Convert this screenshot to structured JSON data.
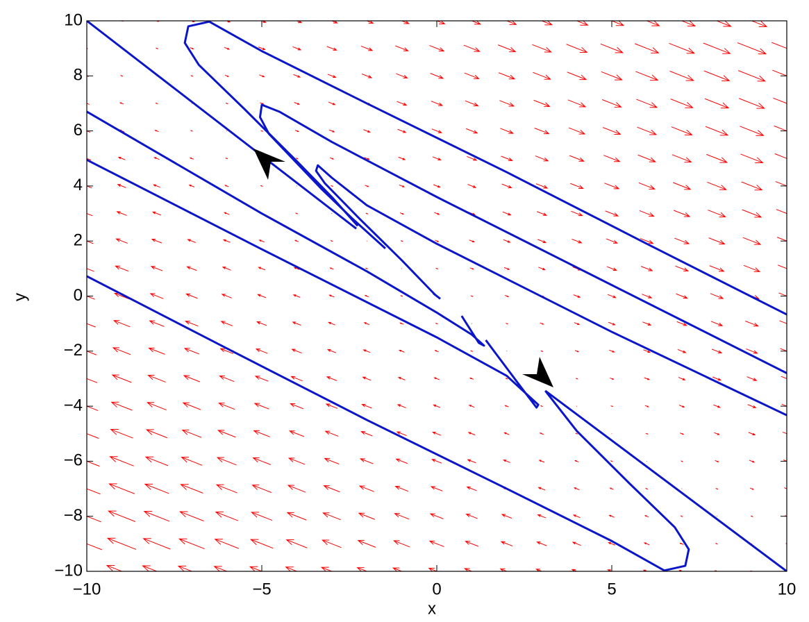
{
  "chart_data": {
    "type": "quiver",
    "xlabel": "x",
    "ylabel": "y",
    "xlim": [
      -10,
      10
    ],
    "ylim": [
      -10,
      10
    ],
    "xticks": [
      {
        "value": -10,
        "label": "−10"
      },
      {
        "value": -5,
        "label": "−5"
      },
      0,
      5,
      10
    ],
    "yticks": [
      {
        "value": -10,
        "label": "−10"
      },
      {
        "value": -8,
        "label": "−8"
      },
      {
        "value": -6,
        "label": "−6"
      },
      {
        "value": -4,
        "label": "−4"
      },
      {
        "value": -2,
        "label": "−2"
      },
      0,
      2,
      4,
      6,
      8,
      10
    ],
    "quiver": {
      "color": "#ff0000",
      "x": [
        -10,
        -9,
        -8,
        -7,
        -6,
        -5,
        -4,
        -3,
        -2,
        -1,
        0,
        1,
        2,
        3,
        4,
        5,
        6,
        7,
        8,
        9,
        10
      ],
      "y": [
        -10,
        -9,
        -8,
        -7,
        -6,
        -5,
        -4,
        -3,
        -2,
        -1,
        0,
        1,
        2,
        3,
        4,
        5,
        6,
        7,
        8,
        9,
        10
      ],
      "u": [
        [
          -20,
          -19,
          -18,
          -17,
          -16,
          -15,
          -14,
          -13,
          -12,
          -11,
          -10,
          -9,
          -8,
          -7,
          -6,
          -5,
          -4,
          -3,
          -2,
          -1,
          0
        ],
        [
          -19,
          -18,
          -17,
          -16,
          -15,
          -14,
          -13,
          -12,
          -11,
          -10,
          -9,
          -8,
          -7,
          -6,
          -5,
          -4,
          -3,
          -2,
          -1,
          0,
          1
        ],
        [
          -18,
          -17,
          -16,
          -15,
          -14,
          -13,
          -12,
          -11,
          -10,
          -9,
          -8,
          -7,
          -6,
          -5,
          -4,
          -3,
          -2,
          -1,
          0,
          1,
          2
        ],
        [
          -17,
          -16,
          -15,
          -14,
          -13,
          -12,
          -11,
          -10,
          -9,
          -8,
          -7,
          -6,
          -5,
          -4,
          -3,
          -2,
          -1,
          0,
          1,
          2,
          3
        ],
        [
          -16,
          -15,
          -14,
          -13,
          -12,
          -11,
          -10,
          -9,
          -8,
          -7,
          -6,
          -5,
          -4,
          -3,
          -2,
          -1,
          0,
          1,
          2,
          3,
          4
        ],
        [
          -15,
          -14,
          -13,
          -12,
          -11,
          -10,
          -9,
          -8,
          -7,
          -6,
          -5,
          -4,
          -3,
          -2,
          -1,
          0,
          1,
          2,
          3,
          4,
          5
        ],
        [
          -14,
          -13,
          -12,
          -11,
          -10,
          -9,
          -8,
          -7,
          -6,
          -5,
          -4,
          -3,
          -2,
          -1,
          0,
          1,
          2,
          3,
          4,
          5,
          6
        ],
        [
          -13,
          -12,
          -11,
          -10,
          -9,
          -8,
          -7,
          -6,
          -5,
          -4,
          -3,
          -2,
          -1,
          0,
          1,
          2,
          3,
          4,
          5,
          6,
          7
        ],
        [
          -12,
          -11,
          -10,
          -9,
          -8,
          -7,
          -6,
          -5,
          -4,
          -3,
          -2,
          -1,
          0,
          1,
          2,
          3,
          4,
          5,
          6,
          7,
          8
        ],
        [
          -11,
          -10,
          -9,
          -8,
          -7,
          -6,
          -5,
          -4,
          -3,
          -2,
          -1,
          0,
          1,
          2,
          3,
          4,
          5,
          6,
          7,
          8,
          9
        ],
        [
          -10,
          -9,
          -8,
          -7,
          -6,
          -5,
          -4,
          -3,
          -2,
          -1,
          0,
          1,
          2,
          3,
          4,
          5,
          6,
          7,
          8,
          9,
          10
        ],
        [
          -9,
          -8,
          -7,
          -6,
          -5,
          -4,
          -3,
          -2,
          -1,
          0,
          1,
          2,
          3,
          4,
          5,
          6,
          7,
          8,
          9,
          10,
          11
        ],
        [
          -8,
          -7,
          -6,
          -5,
          -4,
          -3,
          -2,
          -1,
          0,
          1,
          2,
          3,
          4,
          5,
          6,
          7,
          8,
          9,
          10,
          11,
          12
        ],
        [
          -7,
          -6,
          -5,
          -4,
          -3,
          -2,
          -1,
          0,
          1,
          2,
          3,
          4,
          5,
          6,
          7,
          8,
          9,
          10,
          11,
          12,
          13
        ],
        [
          -6,
          -5,
          -4,
          -3,
          -2,
          -1,
          0,
          1,
          2,
          3,
          4,
          5,
          6,
          7,
          8,
          9,
          10,
          11,
          12,
          13,
          14
        ],
        [
          -5,
          -4,
          -3,
          -2,
          -1,
          0,
          1,
          2,
          3,
          4,
          5,
          6,
          7,
          8,
          9,
          10,
          11,
          12,
          13,
          14,
          15
        ],
        [
          -4,
          -3,
          -2,
          -1,
          0,
          1,
          2,
          3,
          4,
          5,
          6,
          7,
          8,
          9,
          10,
          11,
          12,
          13,
          14,
          15,
          16
        ],
        [
          -3,
          -2,
          -1,
          0,
          1,
          2,
          3,
          4,
          5,
          6,
          7,
          8,
          9,
          10,
          11,
          12,
          13,
          14,
          15,
          16,
          17
        ],
        [
          -2,
          -1,
          0,
          1,
          2,
          3,
          4,
          5,
          6,
          7,
          8,
          9,
          10,
          11,
          12,
          13,
          14,
          15,
          16,
          17,
          18
        ],
        [
          -1,
          0,
          1,
          2,
          3,
          4,
          5,
          6,
          7,
          8,
          9,
          10,
          11,
          12,
          13,
          14,
          15,
          16,
          17,
          18,
          19
        ],
        [
          0,
          1,
          2,
          3,
          4,
          5,
          6,
          7,
          8,
          9,
          10,
          11,
          12,
          13,
          14,
          15,
          16,
          17,
          18,
          19,
          20
        ]
      ],
      "v": [
        [
          10,
          9.5,
          9,
          8.5,
          8,
          7.5,
          7,
          6.5,
          6,
          5.5,
          5,
          4.5,
          4,
          3.5,
          3,
          2.5,
          2,
          1.5,
          1,
          0.5,
          0
        ],
        [
          9.5,
          9,
          8.5,
          8,
          7.5,
          7,
          6.5,
          6,
          5.5,
          5,
          4.5,
          4,
          3.5,
          3,
          2.5,
          2,
          1.5,
          1,
          0.5,
          0,
          -0.5
        ],
        [
          9,
          8.5,
          8,
          7.5,
          7,
          6.5,
          6,
          5.5,
          5,
          4.5,
          4,
          3.5,
          3,
          2.5,
          2,
          1.5,
          1,
          0.5,
          0,
          -0.5,
          -1
        ],
        [
          8.5,
          8,
          7.5,
          7,
          6.5,
          6,
          5.5,
          5,
          4.5,
          4,
          3.5,
          3,
          2.5,
          2,
          1.5,
          1,
          0.5,
          0,
          -0.5,
          -1,
          -1.5
        ],
        [
          8,
          7.5,
          7,
          6.5,
          6,
          5.5,
          5,
          4.5,
          4,
          3.5,
          3,
          2.5,
          2,
          1.5,
          1,
          0.5,
          0,
          -0.5,
          -1,
          -1.5,
          -2
        ],
        [
          7.5,
          7,
          6.5,
          6,
          5.5,
          5,
          4.5,
          4,
          3.5,
          3,
          2.5,
          2,
          1.5,
          1,
          0.5,
          0,
          -0.5,
          -1,
          -1.5,
          -2,
          -2.5
        ],
        [
          7,
          6.5,
          6,
          5.5,
          5,
          4.5,
          4,
          3.5,
          3,
          2.5,
          2,
          1.5,
          1,
          0.5,
          0,
          -0.5,
          -1,
          -1.5,
          -2,
          -2.5,
          -3
        ],
        [
          6.5,
          6,
          5.5,
          5,
          4.5,
          4,
          3.5,
          3,
          2.5,
          2,
          1.5,
          1,
          0.5,
          0,
          -0.5,
          -1,
          -1.5,
          -2,
          -2.5,
          -3,
          -3.5
        ],
        [
          6,
          5.5,
          5,
          4.5,
          4,
          3.5,
          3,
          2.5,
          2,
          1.5,
          1,
          0.5,
          0,
          -0.5,
          -1,
          -1.5,
          -2,
          -2.5,
          -3,
          -3.5,
          -4
        ],
        [
          5.5,
          5,
          4.5,
          4,
          3.5,
          3,
          2.5,
          2,
          1.5,
          1,
          0.5,
          0,
          -0.5,
          -1,
          -1.5,
          -2,
          -2.5,
          -3,
          -3.5,
          -4,
          -4.5
        ],
        [
          5,
          4.5,
          4,
          3.5,
          3,
          2.5,
          2,
          1.5,
          1,
          0.5,
          0,
          -0.5,
          -1,
          -1.5,
          -2,
          -2.5,
          -3,
          -3.5,
          -4,
          -4.5,
          -5
        ],
        [
          4.5,
          4,
          3.5,
          3,
          2.5,
          2,
          1.5,
          1,
          0.5,
          0,
          -0.5,
          -1,
          -1.5,
          -2,
          -2.5,
          -3,
          -3.5,
          -4,
          -4.5,
          -5,
          -5.5
        ],
        [
          4,
          3.5,
          3,
          2.5,
          2,
          1.5,
          1,
          0.5,
          0,
          -0.5,
          -1,
          -1.5,
          -2,
          -2.5,
          -3,
          -3.5,
          -4,
          -4.5,
          -5,
          -5.5,
          -6
        ],
        [
          3.5,
          3,
          2.5,
          2,
          1.5,
          1,
          0.5,
          0,
          -0.5,
          -1,
          -1.5,
          -2,
          -2.5,
          -3,
          -3.5,
          -4,
          -4.5,
          -5,
          -5.5,
          -6,
          -6.5
        ],
        [
          3,
          2.5,
          2,
          1.5,
          1,
          0.5,
          0,
          -0.5,
          -1,
          -1.5,
          -2,
          -2.5,
          -3,
          -3.5,
          -4,
          -4.5,
          -5,
          -5.5,
          -6,
          -6.5,
          -7
        ],
        [
          2.5,
          2,
          1.5,
          1,
          0.5,
          0,
          -0.5,
          -1,
          -1.5,
          -2,
          -2.5,
          -3,
          -3.5,
          -4,
          -4.5,
          -5,
          -5.5,
          -6,
          -6.5,
          -7,
          -7.5
        ],
        [
          2,
          1.5,
          1,
          0.5,
          0,
          -0.5,
          -1,
          -1.5,
          -2,
          -2.5,
          -3,
          -3.5,
          -4,
          -4.5,
          -5,
          -5.5,
          -6,
          -6.5,
          -7,
          -7.5,
          -8
        ],
        [
          1.5,
          1,
          0.5,
          0,
          -0.5,
          -1,
          -1.5,
          -2,
          -2.5,
          -3,
          -3.5,
          -4,
          -4.5,
          -5,
          -5.5,
          -6,
          -6.5,
          -7,
          -7.5,
          -8,
          -8.5
        ],
        [
          1,
          0.5,
          0,
          -0.5,
          -1,
          -1.5,
          -2,
          -2.5,
          -3,
          -3.5,
          -4,
          -4.5,
          -5,
          -5.5,
          -6,
          -6.5,
          -7,
          -7.5,
          -8,
          -8.5,
          -9
        ],
        [
          0.5,
          0,
          -0.5,
          -1,
          -1.5,
          -2,
          -2.5,
          -3,
          -3.5,
          -4,
          -4.5,
          -5,
          -5.5,
          -6,
          -6.5,
          -7,
          -7.5,
          -8,
          -8.5,
          -9,
          -9.5
        ],
        [
          0,
          -0.5,
          -1,
          -1.5,
          -2,
          -2.5,
          -3,
          -3.5,
          -4,
          -4.5,
          -5,
          -5.5,
          -6,
          -6.5,
          -7,
          -7.5,
          -8,
          -8.5,
          -9,
          -9.5,
          -10
        ]
      ]
    },
    "curves": [
      {
        "color": "#0b16c8",
        "x": [
          10,
          6,
          2,
          -2,
          -5,
          -6.5,
          -7.1,
          -7.2,
          -6.8,
          -5.5,
          -4,
          -3,
          -2.26
        ],
        "y": [
          -0.67,
          1.9,
          4.5,
          7.0,
          8.9,
          9.97,
          9.8,
          9.2,
          8.4,
          6.8,
          4.9,
          3.6,
          2.55
        ]
      },
      {
        "color": "#0b16c8",
        "x": [
          10,
          5,
          0,
          -3,
          -4.5,
          -5,
          -5.05,
          -4.8,
          -4.2,
          -3.3,
          -2.4,
          -1.47
        ],
        "y": [
          -2.8,
          0.4,
          3.6,
          5.6,
          6.7,
          6.95,
          6.5,
          5.9,
          5.1,
          3.9,
          2.8,
          1.73
        ]
      },
      {
        "color": "#0b16c8",
        "x": [
          10,
          5,
          0,
          -2,
          -3,
          -3.4,
          -3.45,
          -3.2,
          -2.2,
          -1,
          -0.05
        ],
        "y": [
          -4.33,
          -1.3,
          1.9,
          3.3,
          4.3,
          4.75,
          4.55,
          4.1,
          2.8,
          1.3,
          0.05
        ]
      },
      {
        "color": "#0b16c8",
        "x": [
          -10,
          -6,
          -2,
          2,
          5,
          6.5,
          7.1,
          7.2,
          6.8,
          5.5,
          4,
          3.1
        ],
        "y": [
          0.72,
          -1.9,
          -4.5,
          -7.0,
          -8.9,
          -9.97,
          -9.8,
          -9.2,
          -8.4,
          -6.8,
          -4.9,
          -3.44
        ]
      },
      {
        "color": "#0b16c8",
        "x": [
          -10,
          -5,
          0,
          2,
          2.6,
          2.9,
          2.85,
          2.4,
          1.4
        ],
        "y": [
          4.95,
          1.7,
          -1.5,
          -2.9,
          -3.6,
          -3.95,
          -4.05,
          -3.3,
          -1.6
        ]
      },
      {
        "color": "#0b16c8",
        "x": [
          -10,
          -5,
          -2,
          0,
          1,
          1.35,
          1.2,
          0.71
        ],
        "y": [
          6.7,
          3.0,
          0.9,
          -0.6,
          -1.4,
          -1.8,
          -1.7,
          -0.72
        ]
      },
      {
        "color": "#0b16c8",
        "x": [
          -10,
          -2.3,
          -1,
          -0.1,
          0.1,
          2,
          3.1,
          10
        ],
        "y": [
          10,
          2.45,
          null,
          0.1,
          -0.1,
          null,
          -3.44,
          -10
        ]
      }
    ]
  }
}
